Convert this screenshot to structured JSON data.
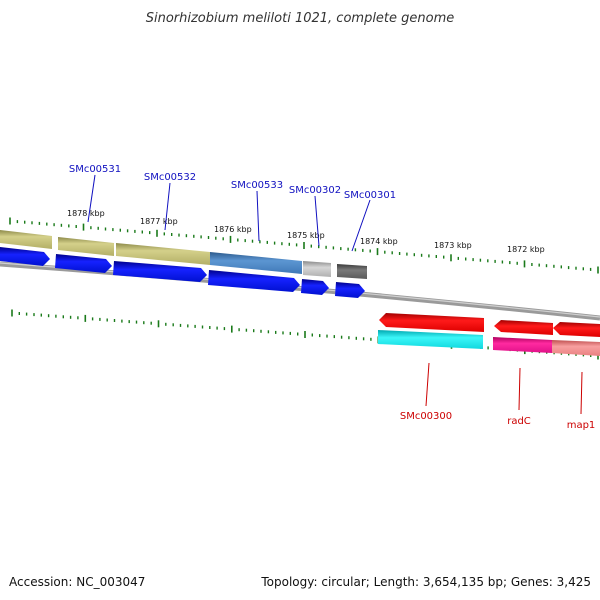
{
  "title": "Sinorhizobium meliloti 1021, complete genome",
  "footer": {
    "accession": "Accession: NC_003047",
    "summary": "Topology: circular; Length: 3,654,135 bp; Genes: 3,425"
  },
  "scale_labels": [
    "1878 kbp",
    "1877 kbp",
    "1876 kbp",
    "1875 kbp",
    "1874 kbp",
    "1873 kbp",
    "1872 kbp"
  ],
  "forward_gene_labels": [
    "SMc00531",
    "SMc00532",
    "SMc00533",
    "SMc00302",
    "SMc00301"
  ],
  "reverse_gene_labels": [
    "SMc00300",
    "radC",
    "map1"
  ],
  "colors": {
    "forward_label": "#1010c0",
    "reverse_label": "#cc0000",
    "backbone": "#808080",
    "tick": "#1a7a1a",
    "cds_forward": "#0a14e8",
    "cds_reverse": "#ee0000",
    "olive": "#c2bf78",
    "steelblue": "#4a82c0",
    "grey_light": "#bdbdbd",
    "grey_dark": "#6a6a6a",
    "cyan": "#12e8ec",
    "magenta": "#ee1490",
    "pink": "#f08a8a"
  }
}
